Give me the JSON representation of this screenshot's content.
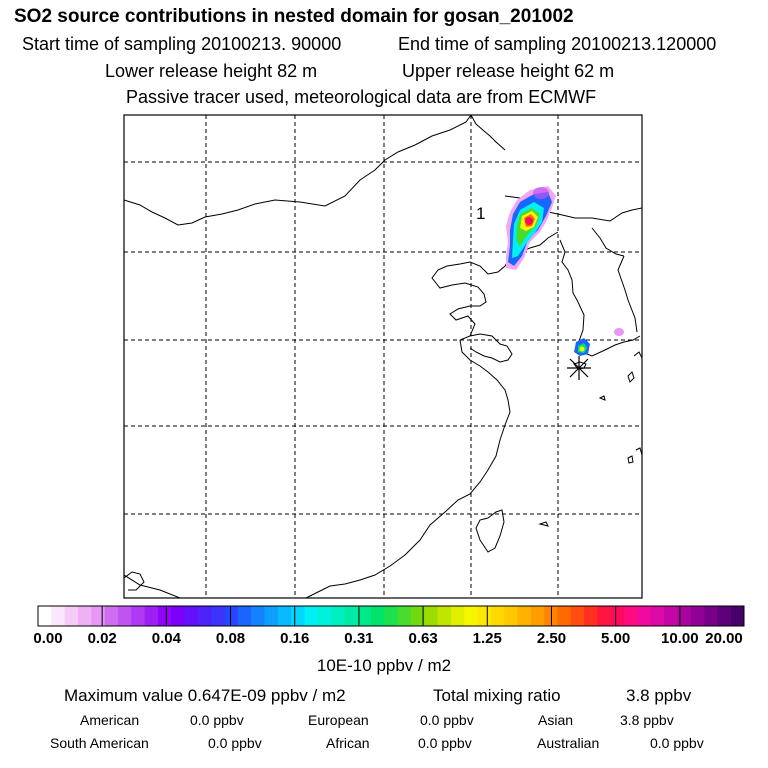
{
  "header": {
    "title": "SO2 source contributions in nested domain for gosan_201002",
    "start_time": "Start time of sampling 20100213. 90000",
    "end_time": "End time of sampling 20100213.120000",
    "lower_release": "Lower release height   82 m",
    "upper_release": "Upper release height   62 m",
    "note": "Passive tracer used, meteorological data are from ECMWF"
  },
  "map": {
    "release_label": "1"
  },
  "colorbar": {
    "ticks": [
      "0.00",
      "0.02",
      "0.04",
      "0.08",
      "0.16",
      "0.31",
      "0.63",
      "1.25",
      "2.50",
      "5.00",
      "10.00",
      "20.00"
    ],
    "units": "10E-10 ppbv / m2",
    "colors": [
      "#ffffff",
      "#fbe6fb",
      "#f5ccf7",
      "#eeb2f4",
      "#e699f2",
      "#cf6ef0",
      "#c054f1",
      "#b03af3",
      "#9f20f5",
      "#8f06f7",
      "#7a00f8",
      "#6410fa",
      "#4f22fb",
      "#3a34fc",
      "#2646fd",
      "#1a66fd",
      "#1482fd",
      "#0e9efd",
      "#08bafd",
      "#02d6fd",
      "#00f0f4",
      "#00f2dc",
      "#00efc0",
      "#00eca4",
      "#00e988",
      "#00e46a",
      "#1ee04c",
      "#48dc2e",
      "#72d810",
      "#9cdc00",
      "#c0e600",
      "#e0f000",
      "#f6f600",
      "#fbe800",
      "#ffd900",
      "#ffc800",
      "#ffb300",
      "#ff9c00",
      "#ff8400",
      "#ff6a00",
      "#ff4e10",
      "#ff3020",
      "#ff1440",
      "#ff0a60",
      "#ff0a80",
      "#f00aa0",
      "#dc08a8",
      "#c406a8",
      "#aa04a0",
      "#900296",
      "#78008a",
      "#5e007a",
      "#46006a"
    ]
  },
  "summary": {
    "max_value": "Maximum value  0.647E-09 ppbv / m2",
    "total_label": "Total mixing ratio",
    "total_value": "3.8 ppbv"
  },
  "regions": [
    {
      "name": "American",
      "value": "0.0 ppbv"
    },
    {
      "name": "European",
      "value": "0.0 ppbv"
    },
    {
      "name": "Asian",
      "value": "3.8 ppbv"
    },
    {
      "name": "South American",
      "value": "0.0 ppbv"
    },
    {
      "name": "African",
      "value": "0.0 ppbv"
    },
    {
      "name": "Australian",
      "value": "0.0 ppbv"
    }
  ]
}
